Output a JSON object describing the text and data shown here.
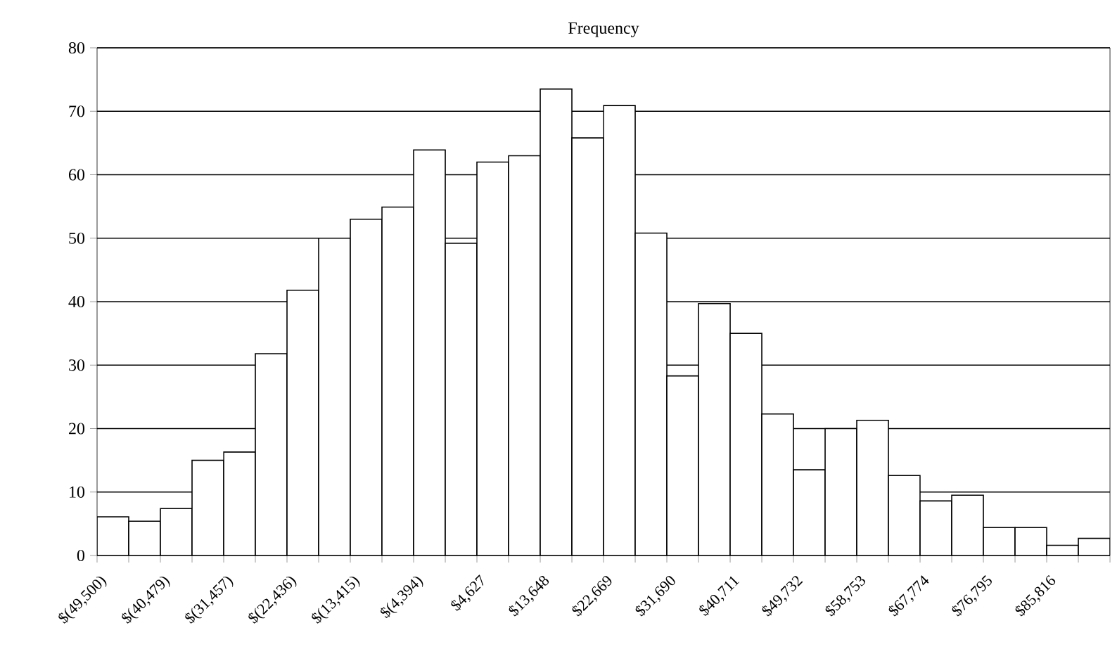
{
  "chart_data": {
    "type": "histogram",
    "title": "Frequency",
    "color": "#ffffff",
    "bins": [
      -49500,
      -44990,
      -40479,
      -35968,
      -31457,
      -26947,
      -22436,
      -17926,
      -13415,
      -8905,
      -4394,
      117,
      4627,
      9138,
      13648,
      18159,
      22669,
      27180,
      31690,
      36201,
      40711,
      45222,
      49732,
      54243,
      58753,
      63264,
      67774,
      72285,
      76795,
      81306,
      85816,
      90327,
      94837
    ],
    "values": [
      6.1,
      5.4,
      7.4,
      15,
      16.3,
      31.8,
      41.8,
      50,
      53,
      54.9,
      63.9,
      49.2,
      62,
      63,
      73.5,
      65.8,
      70.9,
      50.8,
      28.3,
      39.7,
      35,
      22.3,
      13.5,
      20,
      21.3,
      12.6,
      8.6,
      9.5,
      4.4,
      4.4,
      1.6,
      2.7
    ],
    "xlim": [
      -49500,
      94837
    ],
    "ylim": [
      0,
      80
    ],
    "yticks": [
      0,
      10,
      20,
      30,
      40,
      50,
      60,
      70,
      80
    ],
    "xticks": [
      {
        "value": -49500,
        "label": "$(49,500)"
      },
      {
        "value": -44990,
        "label": null
      },
      {
        "value": -40479,
        "label": "$(40,479)"
      },
      {
        "value": -35968,
        "label": null
      },
      {
        "value": -31457,
        "label": "$(31,457)"
      },
      {
        "value": -26947,
        "label": null
      },
      {
        "value": -22436,
        "label": "$(22,436)"
      },
      {
        "value": -17926,
        "label": null
      },
      {
        "value": -13415,
        "label": "$(13,415)"
      },
      {
        "value": -8905,
        "label": null
      },
      {
        "value": -4394,
        "label": "$(4,394)"
      },
      {
        "value": 117,
        "label": null
      },
      {
        "value": 4627,
        "label": "$4,627"
      },
      {
        "value": 9138,
        "label": null
      },
      {
        "value": 13648,
        "label": "$13,648"
      },
      {
        "value": 18159,
        "label": null
      },
      {
        "value": 22669,
        "label": "$22,669"
      },
      {
        "value": 27180,
        "label": null
      },
      {
        "value": 31690,
        "label": "$31,690"
      },
      {
        "value": 36201,
        "label": null
      },
      {
        "value": 40711,
        "label": "$40,711"
      },
      {
        "value": 45222,
        "label": null
      },
      {
        "value": 49732,
        "label": "$49,732"
      },
      {
        "value": 54243,
        "label": null
      },
      {
        "value": 58753,
        "label": "$58,753"
      },
      {
        "value": 63264,
        "label": null
      },
      {
        "value": 67774,
        "label": "$67,774"
      },
      {
        "value": 72285,
        "label": null
      },
      {
        "value": 76795,
        "label": "$76,795"
      },
      {
        "value": 81306,
        "label": null
      },
      {
        "value": 85816,
        "label": "$85,816"
      },
      {
        "value": 90327,
        "label": null
      },
      {
        "value": 94837,
        "label": null
      }
    ],
    "grid": "y"
  }
}
